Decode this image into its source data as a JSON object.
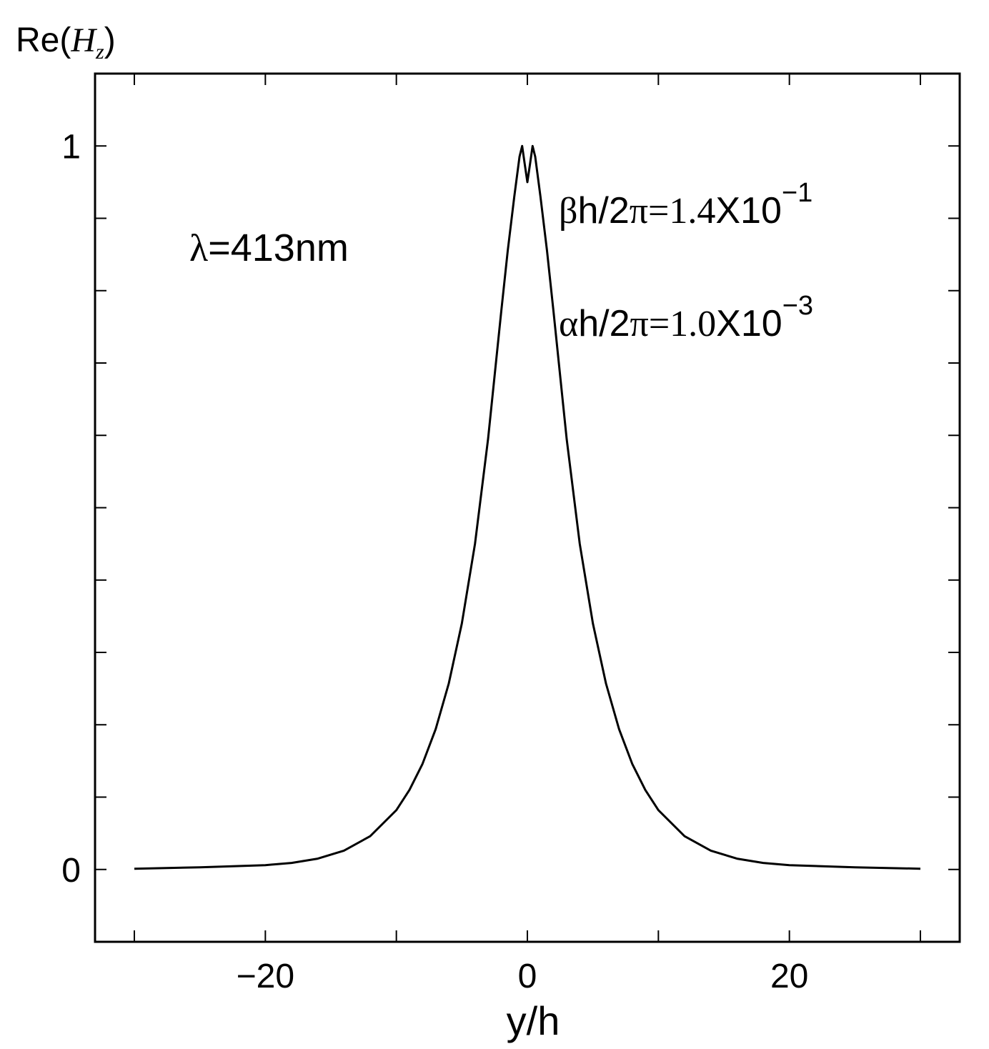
{
  "chart_data": {
    "type": "line",
    "title": "",
    "ylabel_prefix": "Re(",
    "ylabel_symbol": "H",
    "ylabel_sub": "z",
    "ylabel_suffix": ")",
    "xlabel": "y/h",
    "xlim": [
      -33,
      33
    ],
    "ylim": [
      -0.1,
      1.1
    ],
    "x_ticks_labeled": [
      {
        "value": -20,
        "label": "−20"
      },
      {
        "value": 0,
        "label": "0"
      },
      {
        "value": 20,
        "label": "20"
      }
    ],
    "x_ticks_minor": [
      -30,
      -20,
      -10,
      0,
      10,
      20,
      30
    ],
    "y_ticks_labeled": [
      {
        "value": 0,
        "label": "0"
      },
      {
        "value": 1,
        "label": "1"
      }
    ],
    "y_ticks_minor": [
      0,
      0.1,
      0.2,
      0.3,
      0.4,
      0.5,
      0.6,
      0.7,
      0.8,
      0.9,
      1.0
    ],
    "annotations": {
      "wavelength": {
        "symbol": "λ",
        "text": "=413nm"
      },
      "beta": {
        "symbol": "β",
        "mid": "h/2",
        "pi": "π",
        "eq": "=1.4",
        "times": "X10",
        "exp": "−1"
      },
      "alpha": {
        "symbol": "α",
        "mid": "h/2",
        "pi": "π",
        "eq": "=1.0",
        "times": "X10",
        "exp": "−3"
      }
    },
    "series": [
      {
        "x": [
          -30,
          -25,
          -20,
          -18,
          -16,
          -14,
          -12,
          -10,
          -9,
          -8,
          -7,
          -6,
          -5,
          -4,
          -3,
          -2,
          -1.5,
          -1,
          -0.6,
          -0.4,
          -0.2,
          0,
          0.2,
          0.4,
          0.6,
          1,
          1.5,
          2,
          3,
          4,
          5,
          6,
          7,
          8,
          9,
          10,
          12,
          14,
          16,
          18,
          20,
          25,
          30
        ],
        "y": [
          0.001,
          0.003,
          0.006,
          0.009,
          0.015,
          0.026,
          0.046,
          0.082,
          0.11,
          0.146,
          0.194,
          0.257,
          0.34,
          0.45,
          0.595,
          0.77,
          0.855,
          0.93,
          0.985,
          1.0,
          0.975,
          0.95,
          0.975,
          1.0,
          0.985,
          0.93,
          0.855,
          0.77,
          0.595,
          0.45,
          0.34,
          0.257,
          0.194,
          0.146,
          0.11,
          0.082,
          0.046,
          0.026,
          0.015,
          0.009,
          0.006,
          0.003,
          0.001
        ]
      }
    ]
  }
}
